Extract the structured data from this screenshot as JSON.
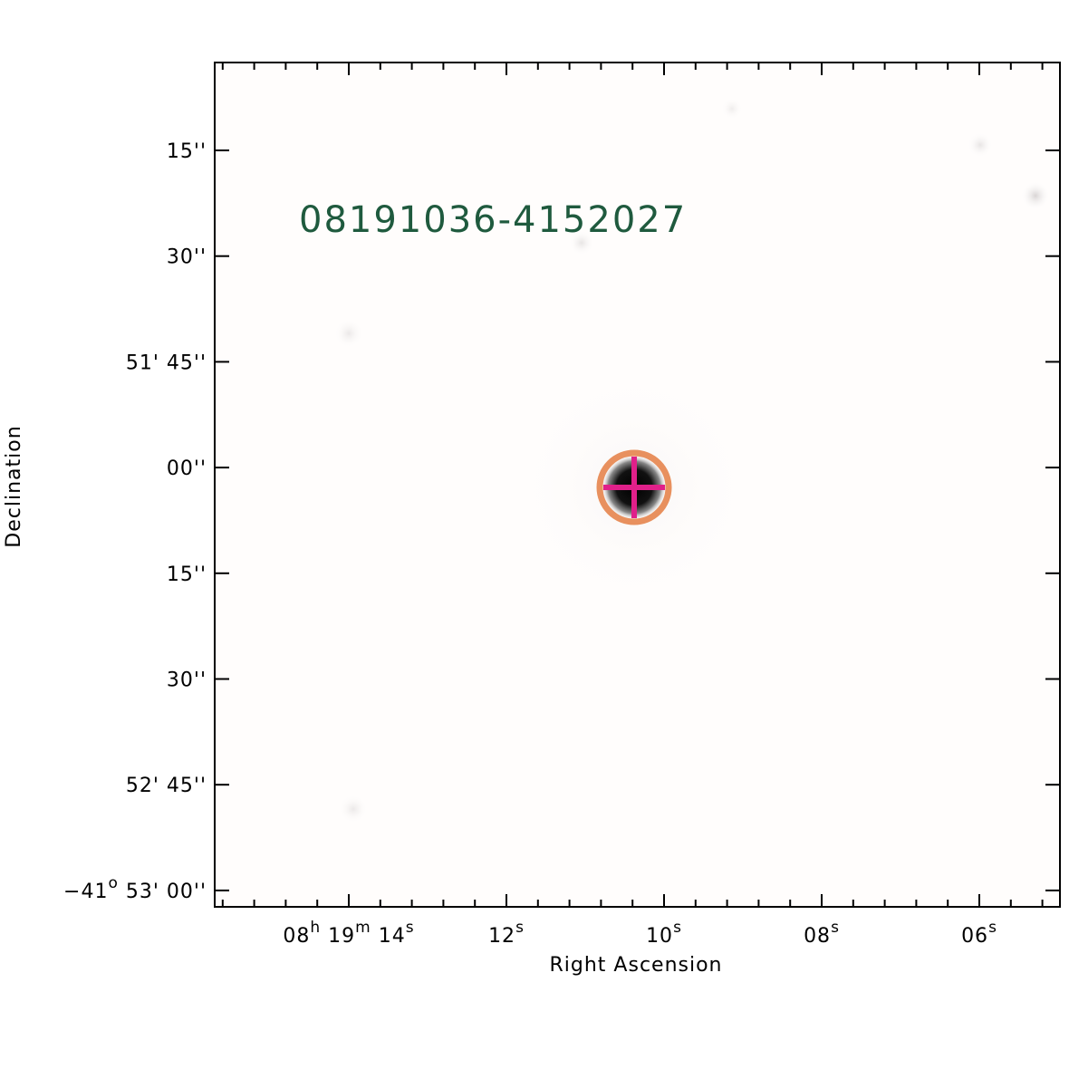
{
  "image": {
    "label": "08191036-4152027",
    "x_axis": {
      "title": "Right Ascension",
      "ticks": [
        [
          {
            "text": "08",
            "sup": "h"
          },
          {
            "text": " 19",
            "sup": "m"
          },
          {
            "text": " 14",
            "sup": "s"
          }
        ],
        [
          {
            "text": "12",
            "sup": "s"
          }
        ],
        [
          {
            "text": "10",
            "sup": "s"
          }
        ],
        [
          {
            "text": "08",
            "sup": "s"
          }
        ],
        [
          {
            "text": "06",
            "sup": "s"
          }
        ]
      ]
    },
    "y_axis": {
      "title": "Declination",
      "ticks": [
        [
          {
            "text": "15''"
          }
        ],
        [
          {
            "text": "30''"
          }
        ],
        [
          {
            "text": "51' 45''"
          }
        ],
        [
          {
            "text": "00''"
          }
        ],
        [
          {
            "text": "15''"
          }
        ],
        [
          {
            "text": "30''"
          }
        ],
        [
          {
            "text": "52' 45''"
          }
        ],
        [
          {
            "text": "−41",
            "sup": "o"
          },
          {
            "text": " 53' 00''"
          }
        ]
      ]
    }
  }
}
